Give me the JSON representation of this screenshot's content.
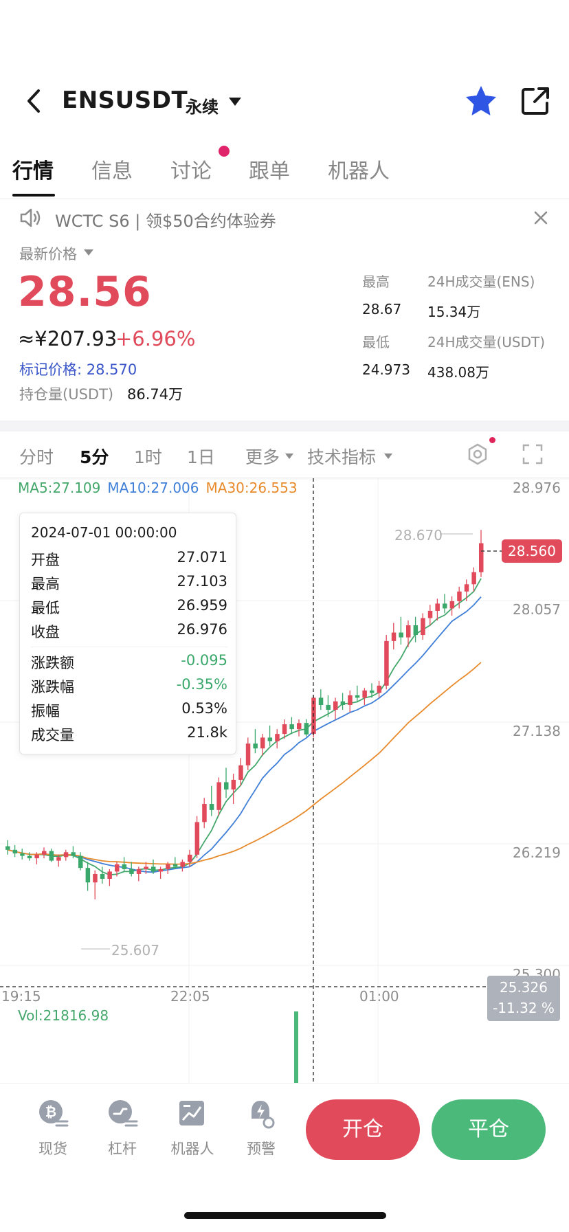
{
  "header": {
    "symbol": "ENSUSDT",
    "contract_type": "永续"
  },
  "tabs": [
    "行情",
    "信息",
    "讨论",
    "跟单",
    "机器人"
  ],
  "announcement": "WCTC S6 | 领$50合约体验券",
  "price": {
    "label": "最新价格",
    "last": "28.56",
    "cny": "≈¥207.93",
    "change_pct": "+6.96%",
    "mark_price": "标记价格: 28.570",
    "open_interest_label": "持仓量(USDT)",
    "open_interest": "86.74万"
  },
  "stats": {
    "high_label": "最高",
    "high": "28.67",
    "low_label": "最低",
    "low": "24.973",
    "vol_base_label": "24H成交量(ENS)",
    "vol_base": "15.34万",
    "vol_quote_label": "24H成交量(USDT)",
    "vol_quote": "438.08万"
  },
  "chart_toolbar": {
    "items": [
      "分时",
      "5分",
      "1时",
      "1日",
      "更多",
      "技术指标"
    ],
    "active": "5分"
  },
  "indicators": {
    "ma5": "MA5:27.109",
    "ma10": "MA10:27.006",
    "ma30": "MA30:26.553"
  },
  "tooltip": {
    "datetime": "2024-07-01 00:00:00",
    "rows": [
      {
        "label": "开盘",
        "value": "27.071"
      },
      {
        "label": "最高",
        "value": "27.103"
      },
      {
        "label": "最低",
        "value": "26.959"
      },
      {
        "label": "收盘",
        "value": "26.976"
      },
      {
        "label": "涨跌额",
        "value": "-0.095"
      },
      {
        "label": "涨跌幅",
        "value": "-0.35%"
      },
      {
        "label": "振幅",
        "value": "0.53%"
      },
      {
        "label": "成交量",
        "value": "21.8k"
      }
    ]
  },
  "chart_labels": {
    "high_marker": "28.670",
    "low_marker": "25.607",
    "last_badge": "28.560",
    "cross_price": "25.326",
    "cross_pct": "-11.32 %",
    "volume": "Vol:21816.98"
  },
  "chart_data": {
    "type": "candlestick",
    "y_ticks": [
      "28.976",
      "28.057",
      "27.138",
      "26.219",
      "25.300"
    ],
    "x_ticks": [
      "19:15",
      "22:05",
      "01:00"
    ],
    "ylim": [
      25.3,
      28.976
    ],
    "series": [
      {
        "name": "MA5",
        "value": 27.109,
        "color": "#43a76b"
      },
      {
        "name": "MA10",
        "value": 27.006,
        "color": "#3f7fd8"
      },
      {
        "name": "MA30",
        "value": 26.553,
        "color": "#e88a2b"
      }
    ],
    "candles": [
      [
        26.05,
        26.1,
        25.98,
        26.02
      ],
      [
        26.02,
        26.06,
        25.96,
        25.99
      ],
      [
        25.99,
        26.03,
        25.94,
        25.97
      ],
      [
        25.97,
        26.0,
        25.93,
        25.95
      ],
      [
        25.95,
        26.0,
        25.9,
        25.98
      ],
      [
        25.98,
        26.04,
        25.95,
        26.01
      ],
      [
        26.01,
        26.03,
        25.92,
        25.93
      ],
      [
        25.93,
        25.98,
        25.88,
        25.96
      ],
      [
        25.96,
        26.02,
        25.93,
        26.0
      ],
      [
        26.0,
        26.05,
        25.95,
        25.97
      ],
      [
        25.97,
        26.0,
        25.85,
        25.87
      ],
      [
        25.87,
        25.92,
        25.68,
        25.75
      ],
      [
        25.75,
        25.85,
        25.61,
        25.82
      ],
      [
        25.82,
        25.88,
        25.74,
        25.78
      ],
      [
        25.78,
        25.86,
        25.72,
        25.84
      ],
      [
        25.84,
        25.92,
        25.8,
        25.9
      ],
      [
        25.9,
        25.96,
        25.84,
        25.86
      ],
      [
        25.86,
        25.92,
        25.8,
        25.82
      ],
      [
        25.82,
        25.88,
        25.76,
        25.86
      ],
      [
        25.86,
        25.92,
        25.82,
        25.88
      ],
      [
        25.88,
        25.94,
        25.82,
        25.84
      ],
      [
        25.84,
        25.88,
        25.78,
        25.86
      ],
      [
        25.86,
        25.92,
        25.82,
        25.9
      ],
      [
        25.9,
        25.96,
        25.86,
        25.88
      ],
      [
        25.88,
        25.94,
        25.84,
        25.92
      ],
      [
        25.92,
        26.02,
        25.88,
        25.98
      ],
      [
        25.98,
        26.3,
        25.95,
        26.25
      ],
      [
        26.25,
        26.45,
        26.2,
        26.4
      ],
      [
        26.4,
        26.55,
        26.3,
        26.35
      ],
      [
        26.35,
        26.62,
        26.3,
        26.58
      ],
      [
        26.58,
        26.7,
        26.45,
        26.52
      ],
      [
        26.52,
        26.65,
        26.4,
        26.6
      ],
      [
        26.6,
        26.78,
        26.55,
        26.72
      ],
      [
        26.72,
        26.95,
        26.68,
        26.9
      ],
      [
        26.9,
        27.02,
        26.82,
        26.86
      ],
      [
        26.86,
        26.98,
        26.8,
        26.95
      ],
      [
        26.95,
        27.05,
        26.88,
        26.92
      ],
      [
        26.92,
        27.02,
        26.86,
        26.98
      ],
      [
        26.98,
        27.1,
        26.94,
        27.06
      ],
      [
        27.06,
        27.12,
        26.98,
        27.02
      ],
      [
        27.02,
        27.1,
        26.96,
        27.07
      ],
      [
        27.071,
        27.103,
        26.959,
        26.976
      ],
      [
        26.98,
        27.3,
        26.95,
        27.28
      ],
      [
        27.28,
        27.35,
        27.18,
        27.22
      ],
      [
        27.22,
        27.3,
        27.12,
        27.18
      ],
      [
        27.18,
        27.28,
        27.1,
        27.25
      ],
      [
        27.25,
        27.32,
        27.18,
        27.22
      ],
      [
        27.22,
        27.34,
        27.16,
        27.3
      ],
      [
        27.3,
        27.38,
        27.24,
        27.28
      ],
      [
        27.28,
        27.36,
        27.22,
        27.34
      ],
      [
        27.34,
        27.4,
        27.28,
        27.32
      ],
      [
        27.32,
        27.42,
        27.28,
        27.38
      ],
      [
        27.38,
        27.8,
        27.35,
        27.75
      ],
      [
        27.75,
        27.9,
        27.68,
        27.82
      ],
      [
        27.82,
        27.95,
        27.72,
        27.78
      ],
      [
        27.78,
        27.92,
        27.7,
        27.88
      ],
      [
        27.88,
        27.95,
        27.74,
        27.8
      ],
      [
        27.8,
        27.98,
        27.76,
        27.94
      ],
      [
        27.94,
        28.05,
        27.88,
        28.0
      ],
      [
        28.0,
        28.1,
        27.92,
        28.06
      ],
      [
        28.06,
        28.14,
        27.98,
        28.02
      ],
      [
        28.02,
        28.12,
        27.96,
        28.08
      ],
      [
        28.08,
        28.2,
        28.02,
        28.16
      ],
      [
        28.16,
        28.26,
        28.08,
        28.22
      ],
      [
        28.22,
        28.36,
        28.16,
        28.32
      ],
      [
        28.32,
        28.67,
        28.28,
        28.56
      ]
    ]
  },
  "bottom_nav": [
    "现货",
    "杠杆",
    "机器人",
    "预警"
  ],
  "actions": {
    "open": "开仓",
    "close": "平仓"
  }
}
